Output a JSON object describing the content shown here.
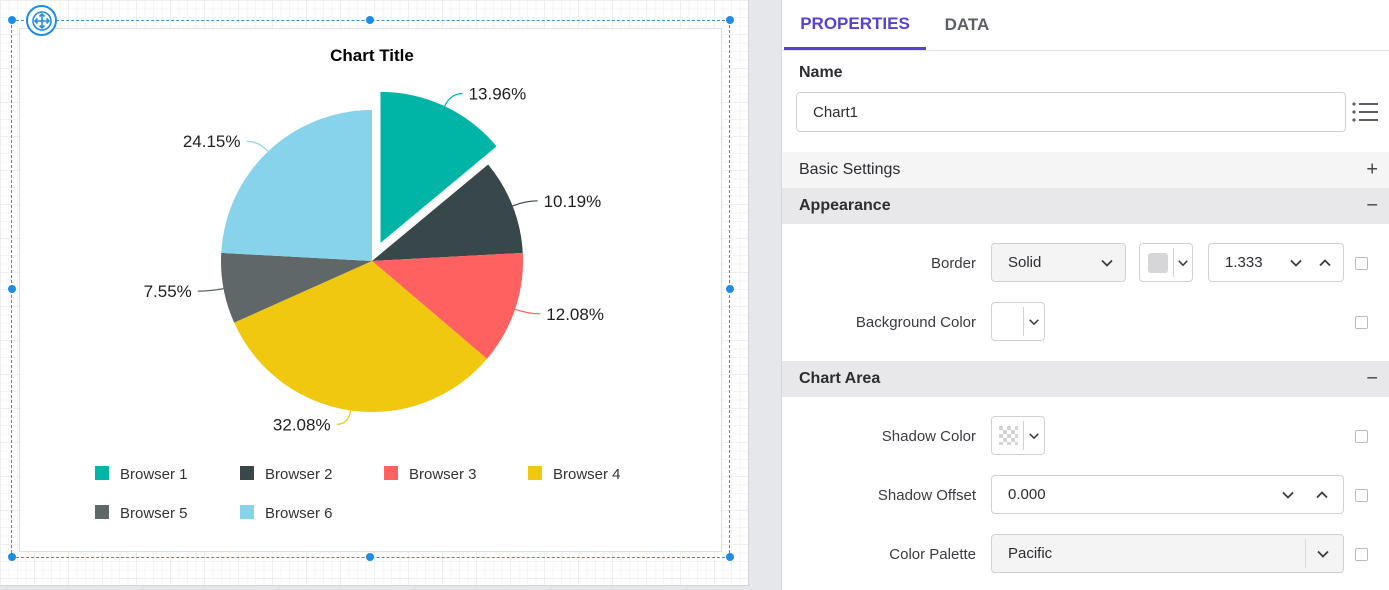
{
  "panel": {
    "tabs": [
      {
        "label": "PROPERTIES"
      },
      {
        "label": "DATA"
      }
    ],
    "name_label": "Name",
    "name_value": "Chart1",
    "sections": {
      "basic_settings": "Basic Settings",
      "appearance": "Appearance",
      "chart_area": "Chart Area"
    },
    "fields": {
      "border_label": "Border",
      "border_style": "Solid",
      "border_width": "1.333",
      "background_color_label": "Background Color",
      "shadow_color_label": "Shadow Color",
      "shadow_offset_label": "Shadow Offset",
      "shadow_offset_value": "0.000",
      "color_palette_label": "Color Palette",
      "color_palette_value": "Pacific"
    },
    "accent_color": "#5b40d6"
  },
  "chart_data": {
    "type": "pie",
    "title": "Chart Title",
    "legend_position": "bottom",
    "categories": [
      "Browser 1",
      "Browser 2",
      "Browser 3",
      "Browser 4",
      "Browser 5",
      "Browser 6"
    ],
    "values": [
      13.96,
      10.19,
      12.08,
      32.08,
      7.55,
      24.15
    ],
    "labels": [
      "13.96%",
      "10.19%",
      "12.08%",
      "32.08%",
      "7.55%",
      "24.15%"
    ],
    "colors": [
      "#00b5a6",
      "#37474a",
      "#ff6160",
      "#f0c80f",
      "#5f6769",
      "#88d3ec"
    ],
    "exploded_index": 0
  }
}
